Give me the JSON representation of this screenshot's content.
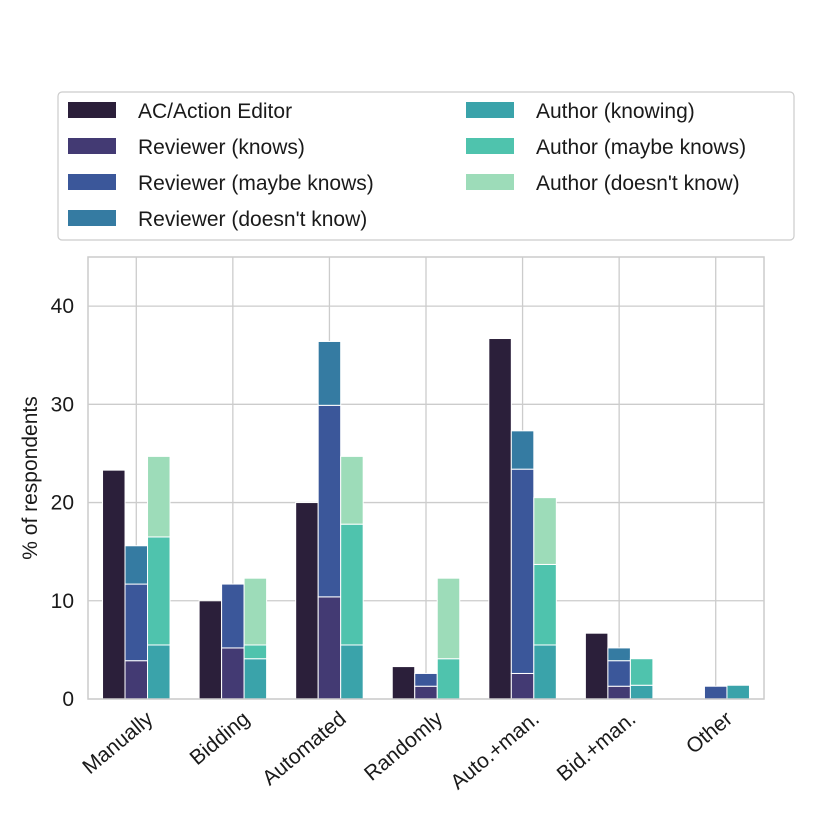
{
  "chart_data": {
    "type": "bar",
    "stacked_groups": true,
    "title": "",
    "xlabel": "",
    "ylabel": "% of respondents",
    "ylim": [
      0,
      45
    ],
    "yticks": [
      0,
      10,
      20,
      30,
      40
    ],
    "grid": true,
    "legend_placement": "top, above plot, two columns",
    "categories": [
      "Manually",
      "Bidding",
      "Automated",
      "Randomly",
      "Auto.+man.",
      "Bid.+man.",
      "Other"
    ],
    "series": [
      {
        "name": "AC/Action Editor",
        "color": "#2b1f3a",
        "group": "ac",
        "values": [
          23.3,
          10.0,
          20.0,
          3.3,
          36.7,
          6.7,
          0
        ]
      },
      {
        "name": "Reviewer (knows)",
        "color": "#433a73",
        "group": "reviewer",
        "values": [
          3.9,
          5.2,
          10.4,
          1.3,
          2.6,
          1.3,
          0
        ]
      },
      {
        "name": "Reviewer (maybe knows)",
        "color": "#3b579a",
        "group": "reviewer",
        "values": [
          7.8,
          6.5,
          19.5,
          1.3,
          20.8,
          2.6,
          1.3
        ]
      },
      {
        "name": "Reviewer (doesn't know)",
        "color": "#357ba2",
        "group": "reviewer",
        "values": [
          3.9,
          0,
          6.5,
          0,
          3.9,
          1.3,
          0
        ]
      },
      {
        "name": "Author (knowing)",
        "color": "#3aa3aa",
        "group": "author",
        "values": [
          5.5,
          4.1,
          5.5,
          0,
          5.5,
          1.4,
          1.4
        ]
      },
      {
        "name": "Author (maybe knows)",
        "color": "#4fc3ad",
        "group": "author",
        "values": [
          11.0,
          1.4,
          12.3,
          4.1,
          8.2,
          2.7,
          0
        ]
      },
      {
        "name": "Author (doesn't know)",
        "color": "#9ddcb9",
        "group": "author",
        "values": [
          8.2,
          6.8,
          6.9,
          8.2,
          6.8,
          0,
          0
        ]
      }
    ]
  }
}
